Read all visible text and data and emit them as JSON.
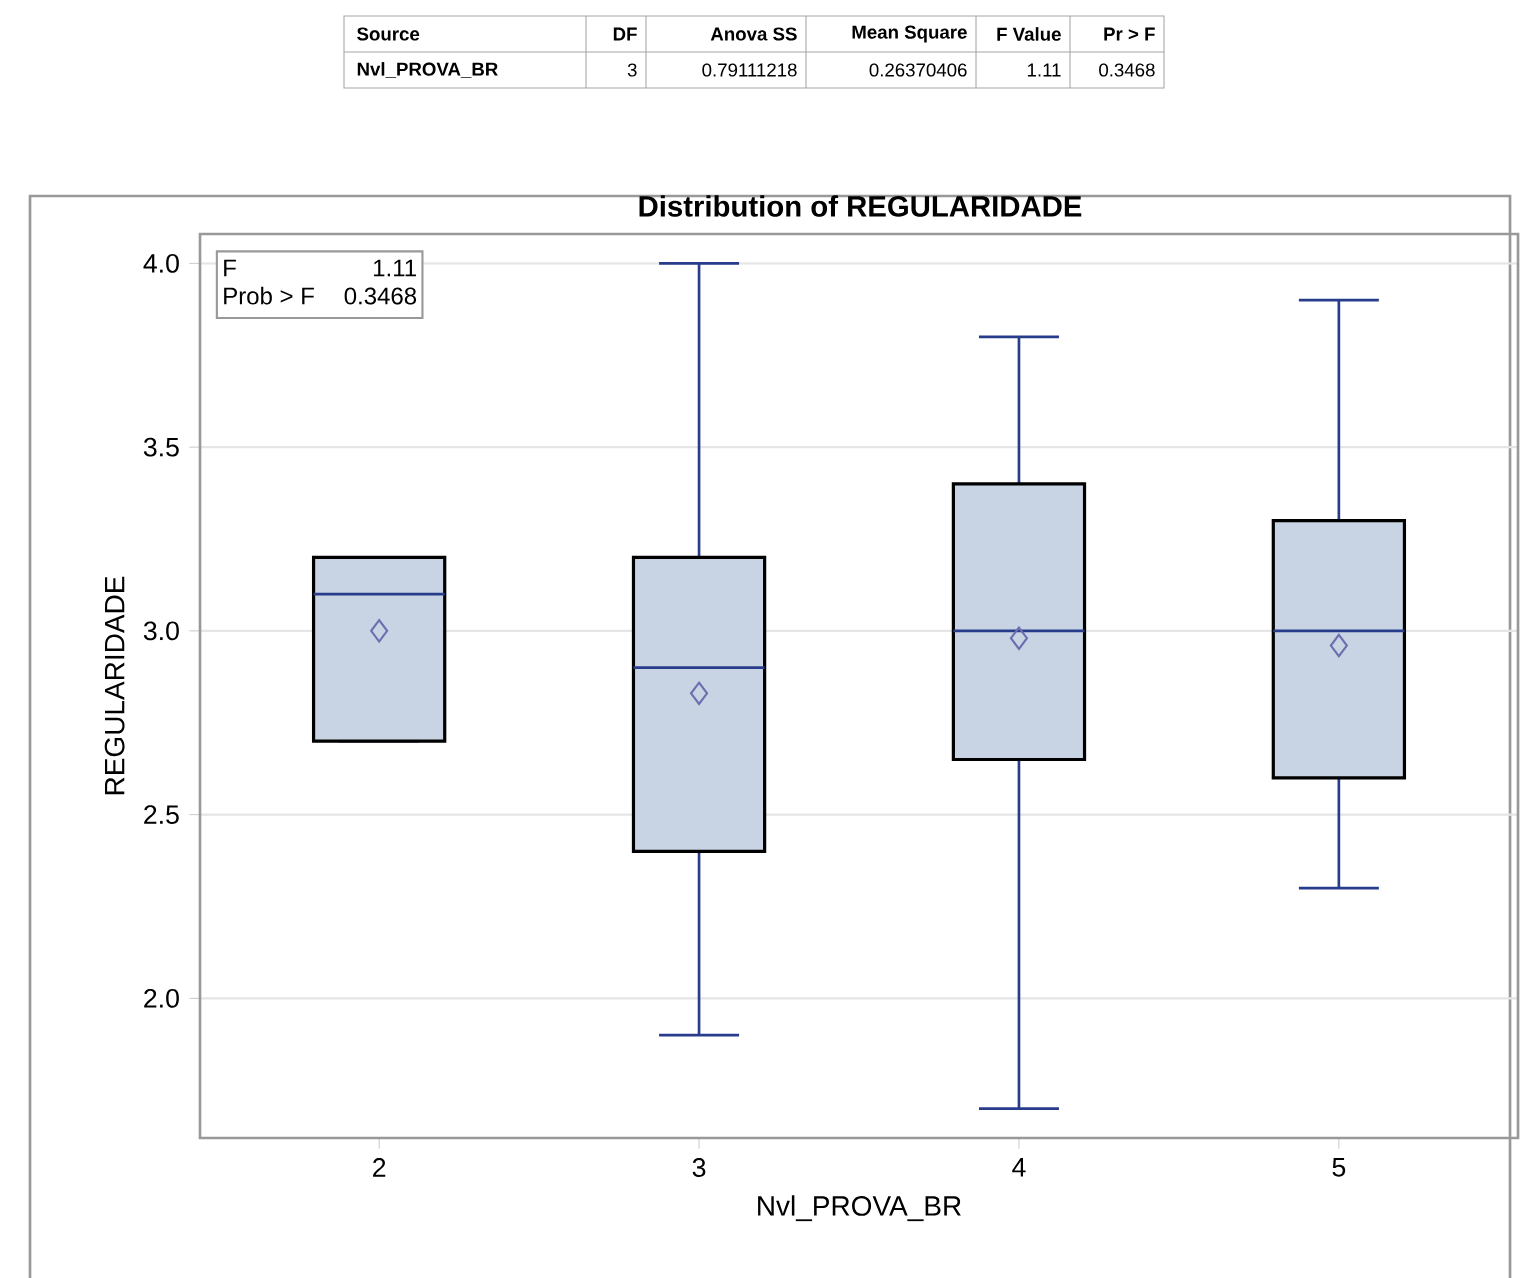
{
  "chart_data": {
    "type": "box",
    "title": "Distribution of REGULARIDADE",
    "xlabel": "Nvl_PROVA_BR",
    "ylabel": "REGULARIDADE",
    "categories": [
      "2",
      "3",
      "4",
      "5"
    ],
    "boxes": [
      {
        "low": 2.7,
        "q1": 2.7,
        "median": 3.1,
        "q3": 3.2,
        "high": 3.2,
        "mean": 3.0
      },
      {
        "low": 1.9,
        "q1": 2.4,
        "median": 2.9,
        "q3": 3.2,
        "high": 4.0,
        "mean": 2.83
      },
      {
        "low": 1.7,
        "q1": 2.65,
        "median": 3.0,
        "q3": 3.4,
        "high": 3.8,
        "mean": 2.98
      },
      {
        "low": 2.3,
        "q1": 2.6,
        "median": 3.0,
        "q3": 3.3,
        "high": 3.9,
        "mean": 2.96
      }
    ],
    "color": "#c8d4e3",
    "ylim": [
      1.62,
      4.08
    ],
    "yticks": [
      {
        "value": 2,
        "label": "2.0"
      },
      {
        "value": 2.5,
        "label": "2.5"
      },
      {
        "value": 3,
        "label": "3.0"
      },
      {
        "value": 3.5,
        "label": "3.5"
      },
      {
        "value": 4,
        "label": "4.0"
      }
    ],
    "grid": "y",
    "marker": "diamond",
    "annotations": [
      "Source",
      "DF",
      "Anova SS",
      "Mean Square",
      "F Value",
      "Pr > F",
      "Nvl_PROVA_BR",
      "3",
      "0.79111218",
      "0.26370406",
      "1.11",
      "0.3468",
      "F",
      "1.11",
      "Prob > F",
      "0.3468"
    ]
  }
}
